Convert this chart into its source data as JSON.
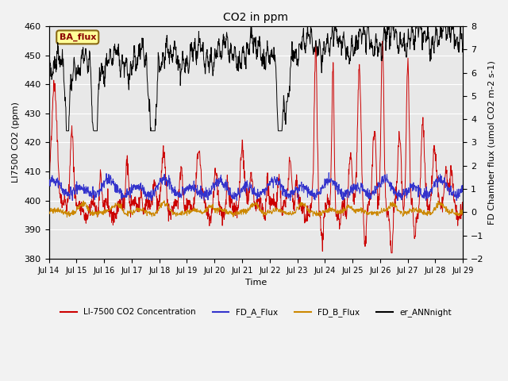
{
  "title": "CO2 in ppm",
  "xlabel": "Time",
  "ylabel_left": "LI7500 CO2 (ppm)",
  "ylabel_right": "FD Chamber flux (umol CO2 m-2 s-1)",
  "ylim_left": [
    380,
    460
  ],
  "ylim_right": [
    -2.0,
    8.0
  ],
  "yticks_left": [
    380,
    390,
    400,
    410,
    420,
    430,
    440,
    450,
    460
  ],
  "yticks_right": [
    -2.0,
    -1.0,
    0.0,
    1.0,
    2.0,
    3.0,
    4.0,
    5.0,
    6.0,
    7.0,
    8.0
  ],
  "xlim": [
    0,
    360
  ],
  "xtick_positions": [
    0,
    24,
    48,
    72,
    96,
    120,
    144,
    168,
    192,
    216,
    240,
    264,
    288,
    312,
    336,
    360
  ],
  "xtick_labels": [
    "Jul 14",
    "Jul 15",
    "Jul 16",
    "Jul 17",
    "Jul 18",
    "Jul 19",
    "Jul 20",
    "Jul 21",
    "Jul 22",
    "Jul 23",
    "Jul 24",
    "Jul 25",
    "Jul 26",
    "Jul 27",
    "Jul 28",
    "Jul 29"
  ],
  "ba_flux_label": "BA_flux",
  "legend_entries": [
    "LI-7500 CO2 Concentration",
    "FD_A_Flux",
    "FD_B_Flux",
    "er_ANNnight"
  ],
  "legend_colors": [
    "#cc0000",
    "#3333cc",
    "#cc8800",
    "#000000"
  ],
  "line_colors": {
    "li7500": "#cc0000",
    "fd_a": "#3333cc",
    "fd_b": "#cc8800",
    "ann": "#000000"
  },
  "plot_bg_color": "#e8e8e8",
  "fig_bg_color": "#f2f2f2",
  "grid_color": "#ffffff"
}
